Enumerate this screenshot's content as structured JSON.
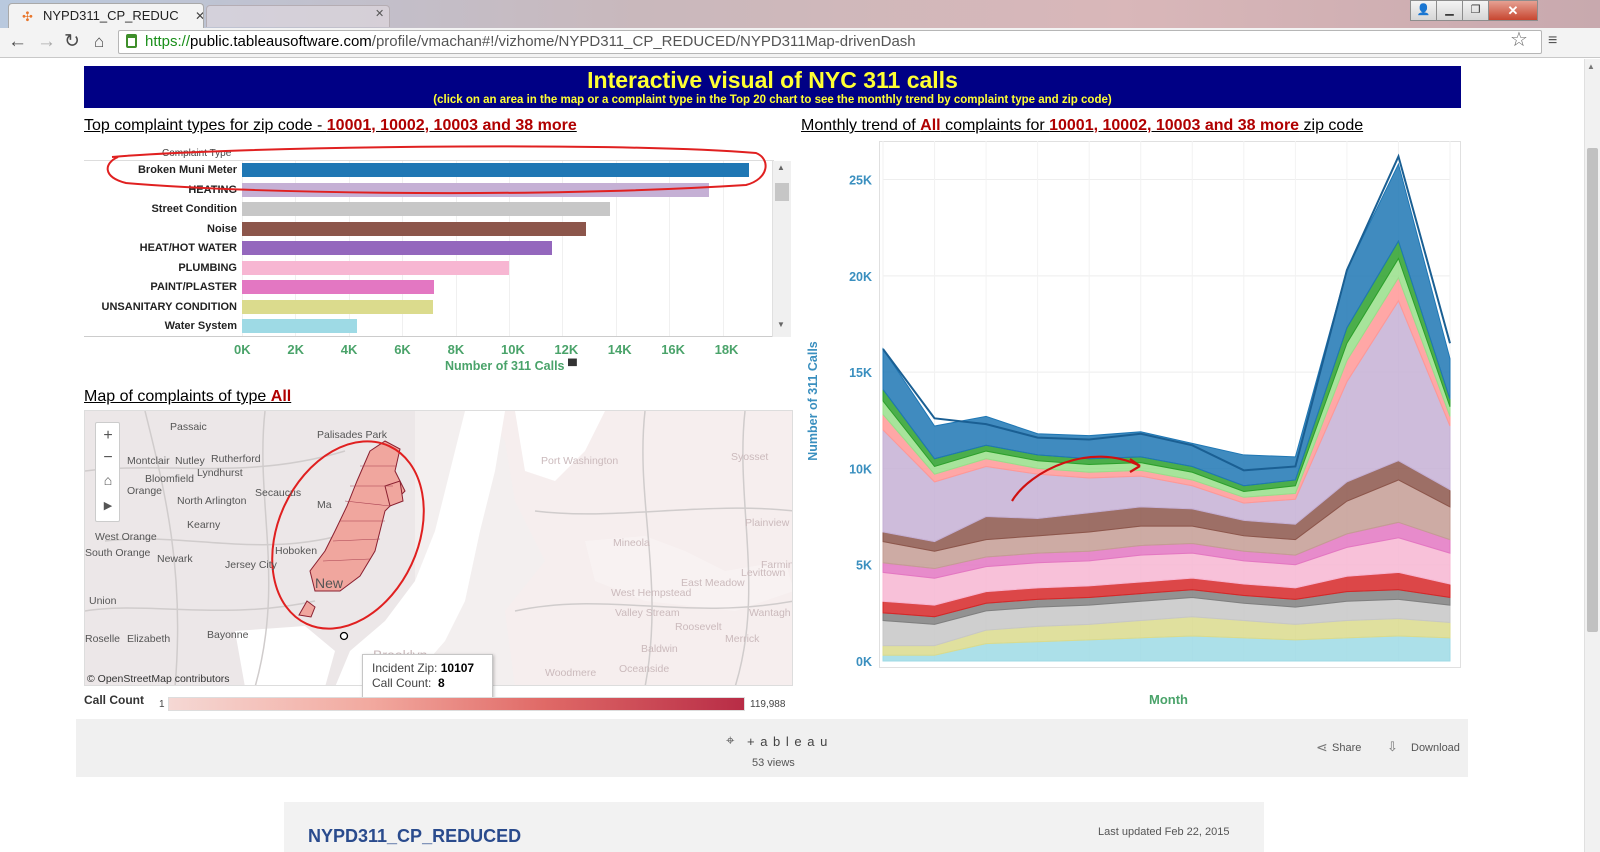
{
  "browser": {
    "tab_title": "NYPD311_CP_REDUC",
    "url_https": "https://",
    "url_host": "public.tableausoftware.com",
    "url_path": "/profile/vmachan#!/vizhome/NYPD311_CP_REDUCED/NYPD311Map-drivenDash"
  },
  "banner": {
    "title": "Interactive visual of NYC 311 calls",
    "subtitle": "(click on an area in the map or a complaint type in the Top 20 chart to see the monthly trend by complaint type and zip code)"
  },
  "bar_section": {
    "title_prefix": "Top complaint types for zip code - ",
    "title_zip": "10001, 10002, 10003 and 38 more",
    "header": "Complaint Type",
    "x_axis_label": "Number of 311 Calls"
  },
  "trend_section": {
    "title_prefix": "Monthly trend of ",
    "title_all": "All",
    "title_middle": " complaints for ",
    "title_zip": "10001, 10002, 10003 and 38 more",
    "title_suffix": " zip code",
    "y_axis_label": "Number of 311 Calls",
    "x_axis_label": "Month"
  },
  "map_section": {
    "title_prefix": "Map of complaints of type ",
    "title_type": "All",
    "attribution": "© OpenStreetMap contributors",
    "tooltip_zip_label": "Incident Zip:",
    "tooltip_zip_value": "10107",
    "tooltip_count_label": "Call Count:",
    "tooltip_count_value": "8",
    "legend_title": "Call Count",
    "legend_min": "1",
    "legend_max": "119,988",
    "place_labels": [
      "Passaic",
      "Palisades Park",
      "Montclair",
      "Nutley",
      "Rutherford",
      "Bloomfield",
      "Lyndhurst",
      "Orange",
      "North Arlington",
      "Secaucus",
      "Kearny",
      "Ma",
      "Port Washington",
      "West Orange",
      "South Orange",
      "Newark",
      "Jersey City",
      "Hoboken",
      "New",
      "Union",
      "Roselle",
      "Elizabeth",
      "Bayonne",
      "Mineola",
      "Levittown",
      "East Meadow",
      "West Hempstead",
      "Valley Stream",
      "Roosevelt",
      "Baldwin",
      "Merrick",
      "Woodmere",
      "Oceanside",
      "Brooklyn",
      "Syosset",
      "Plainview",
      "Farmingdale",
      "Wantagh"
    ]
  },
  "footer": {
    "brand": "+ a b l e a u",
    "views": "53 views",
    "share": "Share",
    "download": "Download"
  },
  "bottom_card": {
    "title": "NYPD311_CP_REDUCED",
    "updated": "Last updated Feb 22, 2015"
  },
  "chart_data": [
    {
      "type": "bar",
      "orientation": "horizontal",
      "categories": [
        "Broken Muni Meter",
        "HEATING",
        "Street Condition",
        "Noise",
        "HEAT/HOT WATER",
        "PLUMBING",
        "PAINT/PLASTER",
        "UNSANITARY CONDITION",
        "Water System"
      ],
      "values": [
        19000,
        17500,
        13800,
        12900,
        11600,
        10000,
        7200,
        7150,
        4300
      ],
      "colors": [
        "#1f77b4",
        "#c5b0d5",
        "#c7c7c7",
        "#8c564b",
        "#9467bd",
        "#f7b6d2",
        "#e377c2",
        "#dbdb8d",
        "#9edae5"
      ],
      "xlabel": "Number of 311 Calls",
      "xlim": [
        0,
        20000
      ],
      "xticks": [
        "0K",
        "2K",
        "4K",
        "6K",
        "8K",
        "10K",
        "12K",
        "14K",
        "16K",
        "18K"
      ],
      "grid": true
    },
    {
      "type": "area",
      "stacked": true,
      "x": [
        1,
        2,
        3,
        4,
        5,
        6,
        7,
        8,
        9,
        10,
        11,
        12
      ],
      "ylabel": "Number of 311 Calls",
      "xlabel": "Month",
      "ylim": [
        0,
        27000
      ],
      "yticks": [
        "0K",
        "5K",
        "10K",
        "15K",
        "20K",
        "25K"
      ],
      "total": [
        16200,
        12600,
        12300,
        11600,
        11500,
        11800,
        11200,
        9900,
        10100,
        20300,
        26200,
        16500
      ],
      "series": [
        {
          "values": [
            300,
            300,
            900,
            1000,
            1100,
            1200,
            1300,
            1200,
            1100,
            1200,
            1300,
            1200
          ],
          "color": "#9edae5"
        },
        {
          "values": [
            500,
            500,
            700,
            800,
            800,
            900,
            1000,
            900,
            800,
            900,
            900,
            800
          ],
          "color": "#dbdb8d"
        },
        {
          "values": [
            1300,
            1100,
            1000,
            1000,
            1000,
            1000,
            1000,
            900,
            900,
            1000,
            1000,
            900
          ],
          "color": "#c7c7c7"
        },
        {
          "values": [
            400,
            400,
            400,
            400,
            400,
            400,
            400,
            400,
            400,
            500,
            500,
            400
          ],
          "color": "#7f7f7f"
        },
        {
          "values": [
            600,
            600,
            600,
            600,
            600,
            600,
            600,
            600,
            600,
            800,
            900,
            700
          ],
          "color": "#d62728"
        },
        {
          "values": [
            1500,
            1400,
            1300,
            1300,
            1300,
            1400,
            1300,
            1200,
            1200,
            1500,
            1800,
            1600
          ],
          "color": "#f7b6d2"
        },
        {
          "values": [
            500,
            500,
            500,
            500,
            500,
            500,
            500,
            500,
            500,
            700,
            800,
            700
          ],
          "color": "#e377c2"
        },
        {
          "values": [
            1100,
            900,
            900,
            900,
            1000,
            1000,
            900,
            800,
            800,
            1700,
            2200,
            1700
          ],
          "color": "#c49c94"
        },
        {
          "values": [
            500,
            500,
            1200,
            900,
            1000,
            1000,
            900,
            800,
            800,
            1000,
            1000,
            900
          ],
          "color": "#8c564b"
        },
        {
          "values": [
            5300,
            3100,
            2600,
            2300,
            1800,
            1600,
            1200,
            900,
            1300,
            5200,
            8300,
            3300
          ],
          "color": "#c5b0d5"
        },
        {
          "values": [
            800,
            400,
            400,
            300,
            300,
            300,
            300,
            300,
            300,
            1100,
            1200,
            500
          ],
          "color": "#ff9896"
        },
        {
          "values": [
            700,
            400,
            400,
            400,
            400,
            400,
            400,
            300,
            400,
            900,
            1000,
            500
          ],
          "color": "#98df8a"
        },
        {
          "values": [
            600,
            400,
            300,
            300,
            300,
            300,
            300,
            300,
            300,
            800,
            900,
            400
          ],
          "color": "#2ca02c"
        },
        {
          "values": [
            2100,
            1700,
            1500,
            1100,
            1200,
            1300,
            1200,
            1600,
            1200,
            3000,
            4000,
            2100
          ],
          "color": "#1f77b4"
        }
      ]
    }
  ]
}
